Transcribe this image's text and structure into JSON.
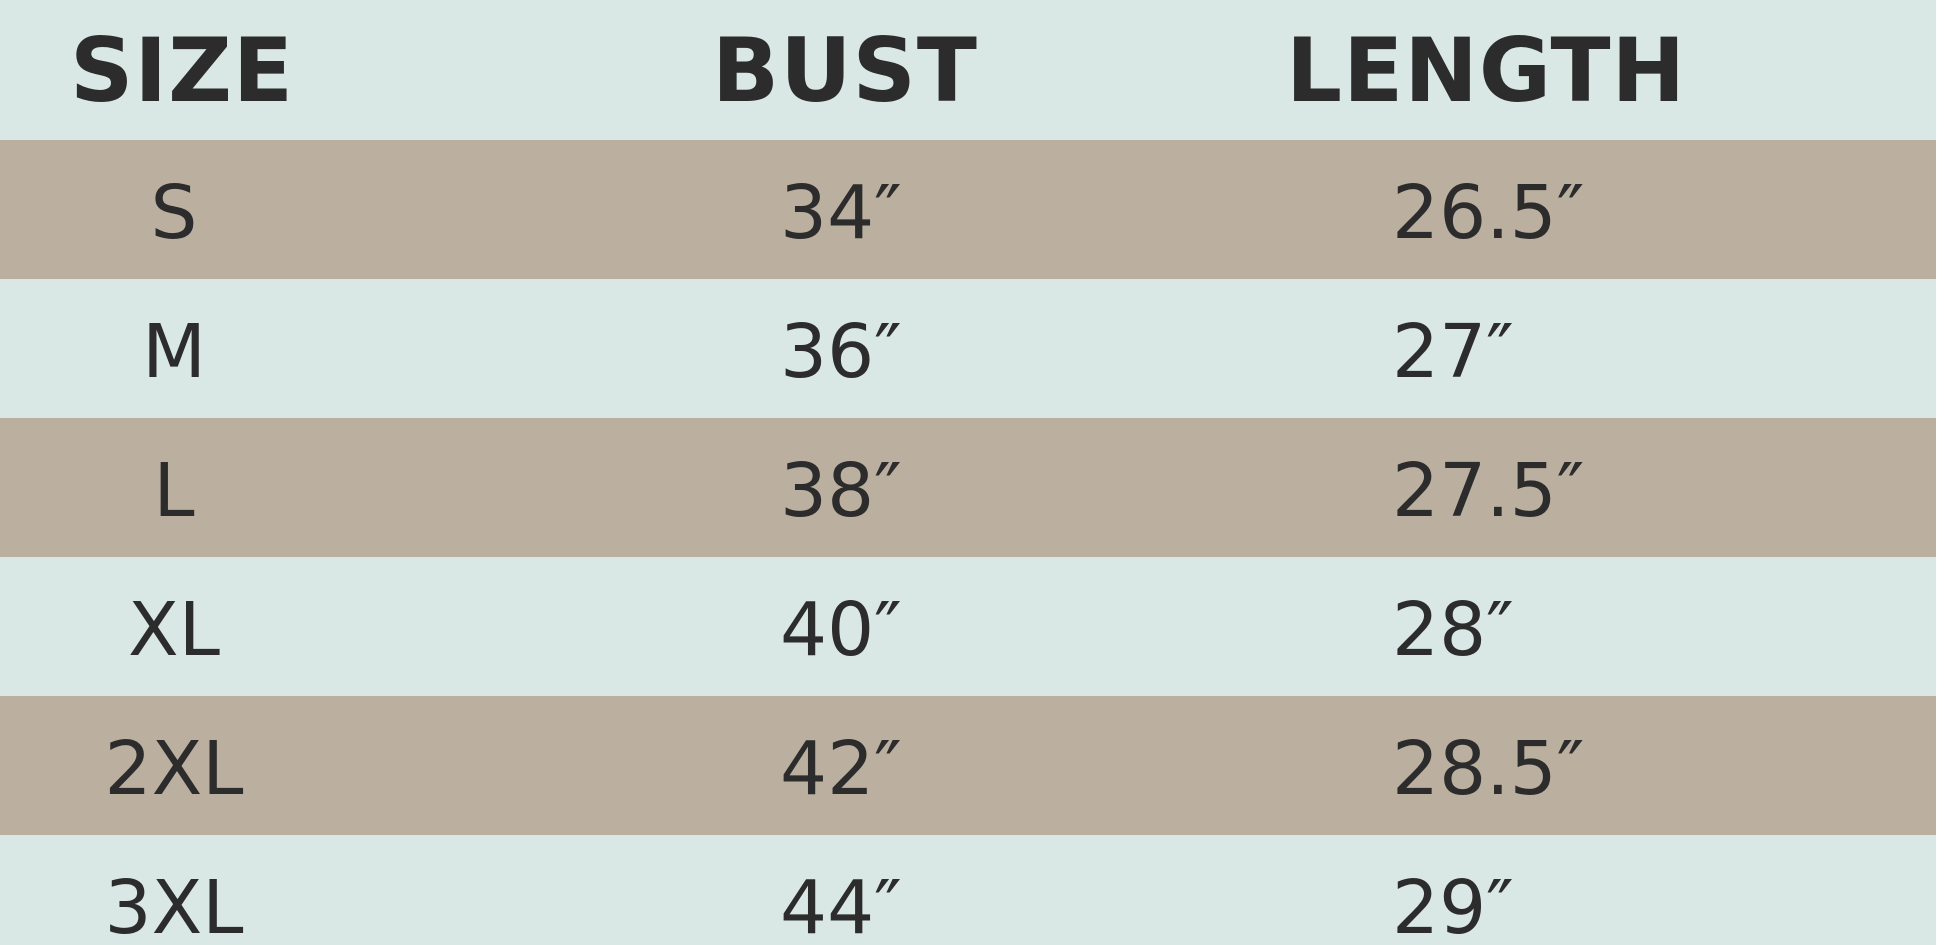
{
  "table": {
    "headers": [
      "SIZE",
      "BUST",
      "LENGTH"
    ],
    "rows": [
      [
        "S",
        "34″",
        "26.5″"
      ],
      [
        "M",
        "36″",
        "27″"
      ],
      [
        "L",
        "38″",
        "27.5″"
      ],
      [
        "XL",
        "40″",
        "28″"
      ],
      [
        "2XL",
        "42″",
        "28.5″"
      ],
      [
        "3XL",
        "44″",
        "29″"
      ]
    ]
  }
}
